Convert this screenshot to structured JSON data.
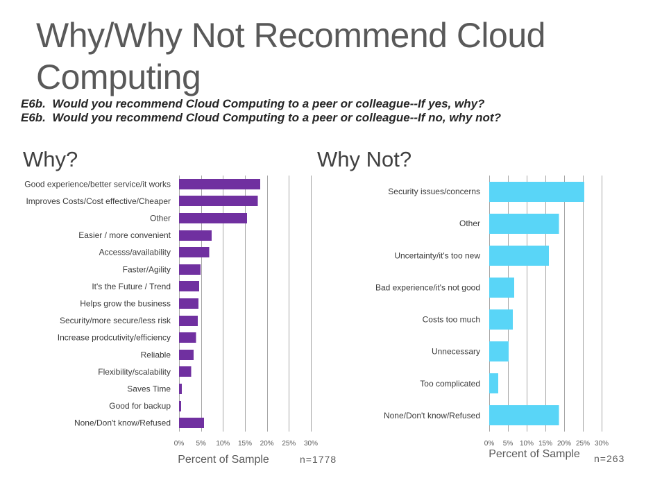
{
  "slide": {
    "title": "Why/Why Not Recommend Cloud Computing",
    "questions": [
      "E6b.  Would you recommend Cloud Computing to a peer or colleague--If yes, why?",
      "E6b.  Would you recommend Cloud Computing to a peer or colleague--If no, why not?"
    ]
  },
  "colors": {
    "background": "#ffffff",
    "title": "#595959",
    "question_text": "#262626",
    "heading": "#404040",
    "label_text": "#3a3a3a",
    "axis_text": "#595959",
    "gridline": "#a6a6a6"
  },
  "chart_data": [
    {
      "type": "bar",
      "title": "Why?",
      "categories": [
        "Good experience/better service/it works",
        "Improves Costs/Cost effective/Cheaper",
        "Other",
        "Easier / more convenient",
        "Accesss/availability",
        "Faster/Agility",
        "It's the Future / Trend",
        "Helps grow the business",
        "Security/more secure/less risk",
        "Increase prodcutivity/efficiency",
        "Reliable",
        "Flexibility/scalability",
        "Saves Time",
        "Good for backup",
        "None/Don't know/Refused"
      ],
      "values": [
        18.5,
        17.9,
        15.5,
        7.4,
        6.9,
        4.9,
        4.6,
        4.4,
        4.3,
        3.9,
        3.3,
        2.8,
        0.6,
        0.5,
        5.7
      ],
      "xlim": [
        0,
        30
      ],
      "xticks": [
        0,
        5,
        10,
        15,
        20,
        25,
        30
      ],
      "xtick_labels": [
        "0%",
        "5%",
        "10%",
        "15%",
        "20%",
        "25%",
        "30%"
      ],
      "xlabel": "Percent of Sample",
      "note": "n=1778",
      "color": "#7030a0",
      "grid": true
    },
    {
      "type": "bar",
      "title": "Why Not?",
      "categories": [
        "Security issues/concerns",
        "Other",
        "Uncertainty/it's too new",
        "Bad experience/it's not good",
        "Costs too much",
        "Unnecessary",
        "Too complicated",
        "None/Don't know/Refused"
      ],
      "values": [
        25.4,
        18.6,
        15.9,
        6.7,
        6.3,
        5.2,
        2.4,
        18.6
      ],
      "xlim": [
        0,
        30
      ],
      "xticks": [
        0,
        5,
        10,
        15,
        20,
        25,
        30
      ],
      "xtick_labels": [
        "0%",
        "5%",
        "10%",
        "15%",
        "20%",
        "25%",
        "30%"
      ],
      "xlabel": "Percent of Sample",
      "note": "n=263",
      "color": "#59d5f7",
      "grid": true
    }
  ]
}
